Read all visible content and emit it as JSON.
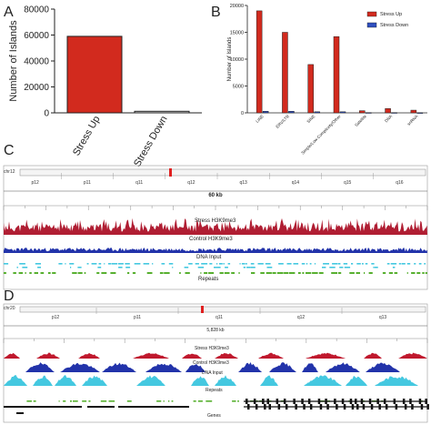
{
  "panel_letters": [
    "A",
    "B",
    "C",
    "D"
  ],
  "chart_data": [
    {
      "type": "bar",
      "categories": [
        "Stress Up",
        "Stress Down"
      ],
      "values": [
        59000,
        1200
      ],
      "ylabel": "Number of Islands",
      "ylim": [
        0,
        80000
      ],
      "yticks": [
        "0",
        "20000",
        "40000",
        "60000",
        "80000"
      ],
      "colors": [
        "#d22a1e",
        "#dcdcdc"
      ],
      "grid": false
    },
    {
      "type": "bar",
      "categories": [
        "LINE",
        "ERV/LTR",
        "SINE",
        "Simple/Low Complexity/Other",
        "Satellite",
        "DNA",
        "snRNA"
      ],
      "series": [
        {
          "name": "Stress Up",
          "values": [
            19000,
            15000,
            9000,
            14200,
            400,
            800,
            500
          ],
          "color": "#d22a1e"
        },
        {
          "name": "Stress Down",
          "values": [
            300,
            300,
            200,
            200,
            50,
            50,
            30
          ],
          "color": "#2f4fbf"
        }
      ],
      "ylabel": "Number of Islands",
      "ylim": [
        0,
        20000
      ],
      "yticks": [
        "0",
        "5000",
        "10000",
        "15000",
        "20000"
      ],
      "legend": "top-right",
      "grid": false
    }
  ],
  "panelC": {
    "chrom": "chr12",
    "bands": [
      "p12",
      "p11",
      "q11",
      "q12",
      "q13",
      "q14",
      "q15",
      "q16"
    ],
    "scale": "60 kb",
    "tracks": [
      "Stress H3K9me3",
      "Control H3K9me3",
      "DNA Input",
      "Repeats"
    ]
  },
  "panelD": {
    "chrom": "chr20",
    "bands": [
      "p12",
      "p11",
      "q11",
      "q12",
      "q13"
    ],
    "scale": "5,828 kb",
    "tracks": [
      "Stress H3K9me3",
      "Control H3K9me3",
      "DNA Input",
      "Repeats",
      "Genes"
    ]
  },
  "colors": {
    "stress": "#b01e33",
    "control": "#c0192e",
    "input": "#2233aa",
    "repeats": "#44c8e0",
    "repeats_green": "#58b030",
    "genes": "#111111",
    "marker": "#e02020"
  }
}
